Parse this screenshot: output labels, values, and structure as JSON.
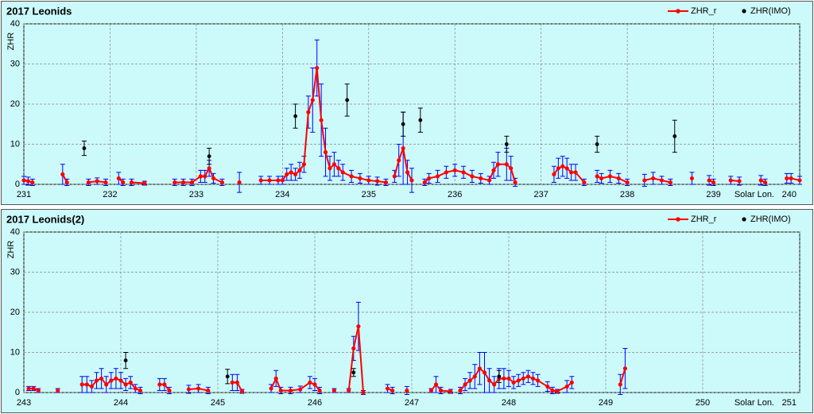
{
  "chart_data": [
    {
      "type": "line",
      "title": "2017 Leonids",
      "ylabel": "ZHR",
      "xlabel": "Solar Lon.",
      "xlim": [
        231,
        240
      ],
      "xticks": [
        231,
        232,
        233,
        234,
        235,
        236,
        237,
        238,
        239,
        240
      ],
      "ylim": [
        0,
        40
      ],
      "yticks": [
        0,
        10,
        20,
        30,
        40
      ],
      "grid": true,
      "legend": "top-right",
      "series": [
        {
          "name": "ZHR_r",
          "color": "#ff0000",
          "error_color": "#0000ff",
          "line": true,
          "x": [
            231.0,
            231.05,
            231.1,
            null,
            231.45,
            231.5,
            null,
            231.75,
            231.85,
            231.95,
            null,
            232.1,
            232.15,
            null,
            232.25,
            232.4,
            null,
            232.75,
            232.85,
            232.95,
            233.05,
            233.1,
            233.15,
            233.2,
            233.3,
            null,
            233.5,
            null,
            233.75,
            233.85,
            233.95,
            234.0,
            234.05,
            234.1,
            234.15,
            234.2,
            234.25,
            234.3,
            234.35,
            234.4,
            234.45,
            234.5,
            234.55,
            234.6,
            234.65,
            234.7,
            234.8,
            234.9,
            235.0,
            235.1,
            235.2,
            null,
            235.3,
            235.35,
            235.4,
            235.45,
            235.5,
            null,
            235.65,
            235.7,
            235.8,
            235.9,
            236.0,
            236.1,
            236.2,
            236.3,
            236.4,
            236.45,
            236.5,
            236.6,
            236.65,
            236.7,
            null,
            237.15,
            237.2,
            237.25,
            237.3,
            237.35,
            237.4,
            237.5,
            null,
            237.65,
            237.7,
            237.8,
            237.9,
            238.0,
            null,
            238.2,
            238.3,
            238.4,
            238.5,
            null,
            238.75,
            null,
            238.95,
            239.0,
            null,
            239.2,
            239.3,
            null,
            239.55,
            239.6,
            null,
            239.85,
            239.9,
            240.0
          ],
          "values": [
            1,
            0.8,
            0.5,
            null,
            2.5,
            0.5,
            null,
            0.5,
            0.8,
            0.5,
            null,
            1.5,
            0.5,
            null,
            0.5,
            0.3,
            null,
            0.5,
            0.5,
            0.5,
            2,
            2,
            4,
            1.5,
            0.5,
            null,
            0.5,
            null,
            1,
            1,
            1,
            1,
            2.5,
            3,
            2.5,
            3.5,
            5,
            18,
            21,
            29,
            16,
            8,
            4,
            5,
            4,
            3,
            2,
            1.5,
            1,
            0.8,
            0.5,
            null,
            2,
            6,
            9,
            3,
            1,
            null,
            0.5,
            1.5,
            2,
            3,
            3.5,
            3,
            2,
            1.5,
            1,
            3.5,
            5,
            5,
            4,
            0.5,
            null,
            2.5,
            4,
            4.5,
            4,
            3,
            3,
            0.5,
            null,
            2,
            1.5,
            2,
            1.5,
            0.5,
            null,
            1,
            1.5,
            1,
            0.5,
            null,
            1.5,
            null,
            1,
            0.5,
            null,
            1,
            0.8,
            null,
            1,
            0.5,
            null,
            1.5,
            1.5,
            1
          ],
          "errors": [
            1,
            1,
            0.8,
            null,
            2.5,
            0.8,
            null,
            0.8,
            0.8,
            0.8,
            null,
            1.5,
            0.8,
            null,
            0.8,
            0.5,
            null,
            0.8,
            0.8,
            0.8,
            1.5,
            1.5,
            2,
            1.2,
            0.8,
            null,
            2.5,
            null,
            1,
            1,
            1,
            1,
            1.5,
            2,
            1.5,
            2,
            2,
            4,
            8,
            7,
            9,
            6,
            3,
            3,
            2,
            2,
            1.5,
            1.2,
            1,
            1,
            0.8,
            null,
            1.5,
            4,
            9,
            3,
            3,
            null,
            0.8,
            1.2,
            1.5,
            1.5,
            1.5,
            1.5,
            1.5,
            1.2,
            1,
            2,
            3,
            4,
            3,
            1,
            null,
            2,
            2.5,
            2.5,
            2.5,
            2,
            2,
            0.8,
            null,
            1.5,
            1.2,
            1.5,
            1.2,
            0.8,
            null,
            1.5,
            1.5,
            1,
            0.8,
            null,
            1.5,
            null,
            1.2,
            0.8,
            null,
            1,
            1,
            null,
            1.2,
            0.8,
            null,
            1.2,
            1.2,
            1
          ]
        },
        {
          "name": "ZHR(IMO)",
          "color": "#000000",
          "error_color": "#000000",
          "line": false,
          "x": [
            231.7,
            233.15,
            234.15,
            234.75,
            235.4,
            235.6,
            236.6,
            237.65,
            238.55
          ],
          "values": [
            9,
            7,
            17,
            21,
            15,
            16,
            10,
            10,
            12
          ],
          "errors": [
            1.8,
            2,
            3,
            4,
            3,
            3,
            2,
            2,
            4
          ]
        }
      ]
    },
    {
      "type": "line",
      "title": "2017 Leonids(2)",
      "ylabel": "ZHR",
      "xlabel": "Solar Lon.",
      "xlim": [
        243,
        251
      ],
      "xticks": [
        243,
        244,
        245,
        246,
        247,
        248,
        249,
        250,
        251
      ],
      "ylim": [
        0,
        40
      ],
      "yticks": [
        0,
        10,
        20,
        30,
        40
      ],
      "grid": true,
      "legend": "top-right",
      "series": [
        {
          "name": "ZHR_r",
          "color": "#ff0000",
          "error_color": "#0000ff",
          "line": true,
          "x": [
            243.05,
            243.1,
            243.15,
            null,
            243.35,
            null,
            243.6,
            243.65,
            243.7,
            243.75,
            243.8,
            243.85,
            243.9,
            243.95,
            244.0,
            244.05,
            244.1,
            244.15,
            244.2,
            null,
            244.4,
            244.45,
            244.5,
            null,
            244.7,
            244.8,
            244.9,
            null,
            245.15,
            245.2,
            245.25,
            null,
            245.55,
            245.6,
            245.65,
            245.75,
            245.85,
            245.95,
            246.0,
            246.05,
            null,
            246.2,
            null,
            246.35,
            246.4,
            246.45,
            246.5,
            null,
            246.75,
            246.8,
            null,
            246.95,
            null,
            247.2,
            247.25,
            247.3,
            247.4,
            null,
            247.5,
            247.55,
            247.6,
            247.65,
            247.7,
            247.75,
            247.8,
            247.85,
            247.9,
            247.95,
            248.0,
            248.05,
            248.1,
            248.15,
            248.2,
            248.25,
            248.3,
            248.4,
            248.45,
            248.5,
            248.6,
            248.65,
            null,
            249.15,
            249.2
          ],
          "values": [
            1,
            1,
            0.5,
            null,
            0.5,
            null,
            2,
            2,
            1.5,
            3,
            3.5,
            2,
            3,
            3.5,
            3,
            2,
            2.5,
            1,
            0.5,
            null,
            2,
            2,
            0.5,
            null,
            0.8,
            1,
            0.5,
            null,
            2.5,
            2.5,
            0.3,
            null,
            1,
            3.5,
            0.5,
            0.5,
            0.8,
            2.5,
            2,
            0.5,
            null,
            0.5,
            null,
            0.5,
            11,
            16.5,
            0,
            null,
            1,
            0.5,
            null,
            0.5,
            null,
            0.5,
            2,
            0.5,
            0.3,
            null,
            0.5,
            2,
            3,
            4,
            6,
            5,
            3,
            2,
            3.5,
            3.5,
            3.5,
            2.5,
            3,
            3.5,
            4,
            3.5,
            3,
            1.5,
            0.5,
            0.3,
            1.5,
            2.5,
            null,
            2,
            6
          ],
          "errors": [
            0.5,
            0.5,
            0.5,
            null,
            0.5,
            null,
            2,
            2,
            1.5,
            2,
            2.5,
            2,
            2,
            2.5,
            2,
            1.5,
            1.5,
            1,
            0.8,
            null,
            1.5,
            1.5,
            0.8,
            null,
            1,
            1,
            0.8,
            null,
            2,
            2,
            0.5,
            null,
            1,
            2,
            0.8,
            0.8,
            0.8,
            1.5,
            1.5,
            0.8,
            null,
            0.5,
            null,
            0.5,
            3,
            6,
            0.5,
            null,
            1,
            0.8,
            null,
            1,
            null,
            0.5,
            2,
            0.8,
            0.5,
            null,
            0.8,
            1.5,
            2,
            3,
            4,
            5,
            3,
            2,
            2.5,
            2.5,
            2,
            1.5,
            1.5,
            1.5,
            1.5,
            1.5,
            1.5,
            1.2,
            0.8,
            0.5,
            1.5,
            1.5,
            null,
            2.5,
            5
          ]
        },
        {
          "name": "ZHR(IMO)",
          "color": "#000000",
          "error_color": "#000000",
          "line": false,
          "x": [
            244.05,
            245.1,
            246.4,
            247.9
          ],
          "values": [
            8,
            4,
            5,
            4
          ],
          "errors": [
            2,
            1.8,
            1,
            1.5
          ]
        }
      ]
    }
  ]
}
